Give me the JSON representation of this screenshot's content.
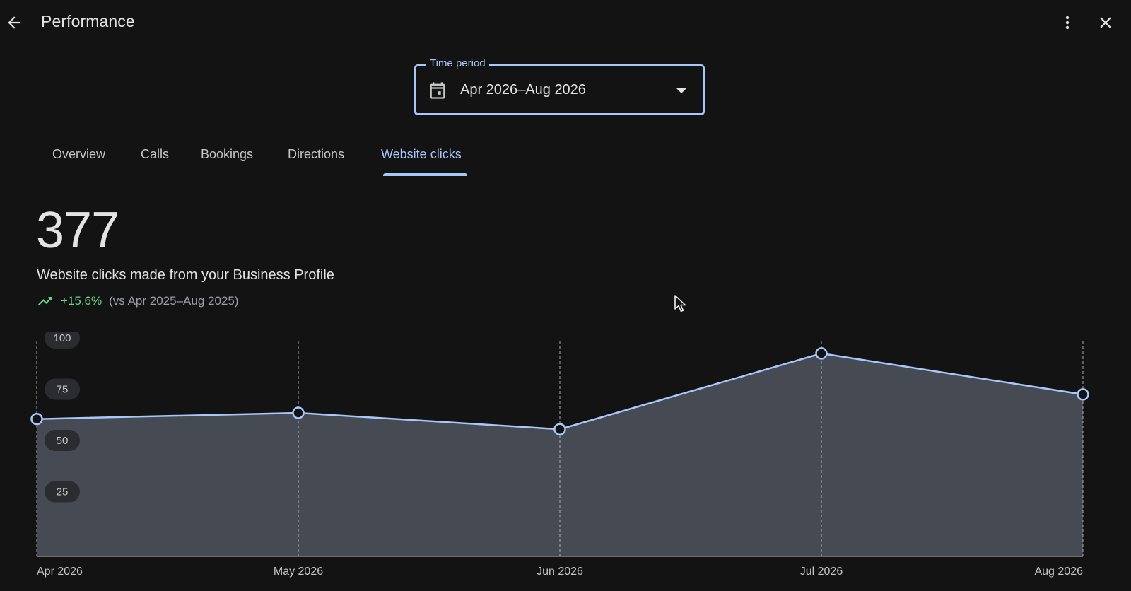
{
  "header": {
    "title": "Performance",
    "back_icon": "arrow-back-icon",
    "more_icon": "more-vert-icon",
    "close_icon": "close-icon"
  },
  "time_period": {
    "legend": "Time period",
    "value": "Apr 2026–Aug 2026",
    "icon": "calendar-icon"
  },
  "tabs": [
    {
      "label": "Overview",
      "active": false
    },
    {
      "label": "Calls",
      "active": false
    },
    {
      "label": "Bookings",
      "active": false
    },
    {
      "label": "Directions",
      "active": false
    },
    {
      "label": "Website clicks",
      "active": true
    }
  ],
  "metric": {
    "value": "377",
    "label": "Website clicks made from your Business Profile",
    "change": "+15.6%",
    "comparison": "(vs Apr 2025–Aug 2025)",
    "trend_icon": "trending-up-icon"
  },
  "colors": {
    "accent": "#a8c7fa",
    "positive": "#6dd58c",
    "background": "#131314",
    "area_fill": "#454a53"
  },
  "chart_data": {
    "type": "area",
    "categories": [
      "Apr 2026",
      "May 2026",
      "Jun 2026",
      "Jul 2026",
      "Aug 2026"
    ],
    "values": [
      67,
      70,
      62,
      99,
      79
    ],
    "ylim": [
      0,
      100
    ],
    "y_ticks": [
      "100",
      "75",
      "50",
      "25"
    ],
    "grid": "vertical-dashed"
  }
}
